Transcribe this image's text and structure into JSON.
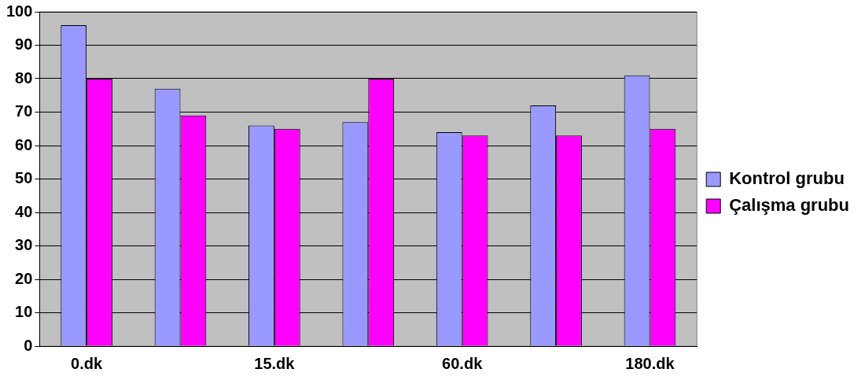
{
  "chart_data": {
    "type": "bar",
    "categories": [
      "0.dk",
      null,
      "15.dk",
      null,
      "60.dk",
      null,
      "180.dk"
    ],
    "series": [
      {
        "name": "Kontrol grubu",
        "color": "#9999ff",
        "values": [
          96,
          77,
          66,
          67,
          64,
          72,
          81
        ]
      },
      {
        "name": "Çalışma grubu",
        "color": "#ff00ff",
        "values": [
          80,
          69,
          65,
          80,
          63,
          63,
          65
        ]
      }
    ],
    "ylim": [
      0,
      100
    ],
    "yticks": [
      0,
      10,
      20,
      30,
      40,
      50,
      60,
      70,
      80,
      90,
      100
    ],
    "grid": "y",
    "legend": "right"
  }
}
